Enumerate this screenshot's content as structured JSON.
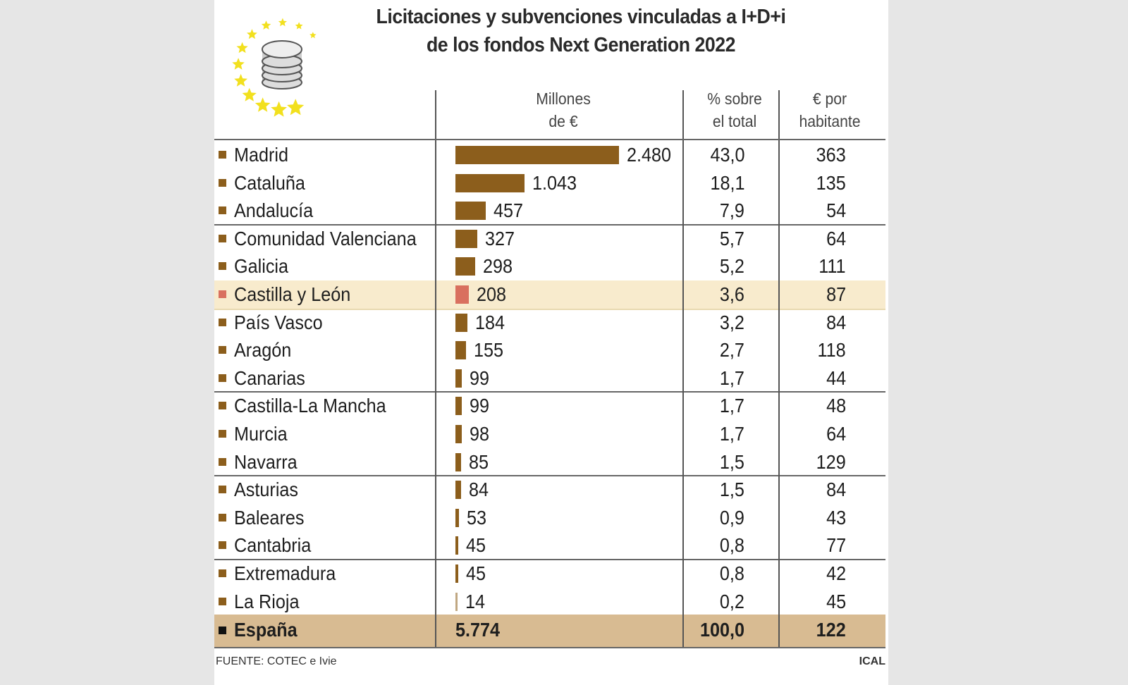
{
  "chart_data": {
    "type": "table",
    "title": "Licitaciones y subvenciones vinculadas a I+D+i de los fondos Next Generation 2022",
    "title_lines": [
      "Licitaciones y subvenciones vinculadas a I+D+i",
      "de los fondos Next Generation 2022"
    ],
    "columns": [
      "Millones de €",
      "% sobre el total",
      "€ por habitante"
    ],
    "column_lines": [
      [
        "Millones",
        "de €"
      ],
      [
        "% sobre",
        "el total"
      ],
      [
        "€ por",
        "habitante"
      ]
    ],
    "rows": [
      {
        "region": "Madrid",
        "millones": "2.480",
        "value": 2480,
        "pct": "43,0",
        "per_hab": "363"
      },
      {
        "region": "Cataluña",
        "millones": "1.043",
        "value": 1043,
        "pct": "18,1",
        "per_hab": "135"
      },
      {
        "region": "Andalucía",
        "millones": "457",
        "value": 457,
        "pct": "7,9",
        "per_hab": "54"
      },
      {
        "region": "Comunidad Valenciana",
        "millones": "327",
        "value": 327,
        "pct": "5,7",
        "per_hab": "64"
      },
      {
        "region": "Galicia",
        "millones": "298",
        "value": 298,
        "pct": "5,2",
        "per_hab": "111"
      },
      {
        "region": "Castilla y León",
        "millones": "208",
        "value": 208,
        "pct": "3,6",
        "per_hab": "87",
        "highlight": true
      },
      {
        "region": "País Vasco",
        "millones": "184",
        "value": 184,
        "pct": "3,2",
        "per_hab": "84"
      },
      {
        "region": "Aragón",
        "millones": "155",
        "value": 155,
        "pct": "2,7",
        "per_hab": "118"
      },
      {
        "region": "Canarias",
        "millones": "99",
        "value": 99,
        "pct": "1,7",
        "per_hab": "44"
      },
      {
        "region": "Castilla-La Mancha",
        "millones": "99",
        "value": 99,
        "pct": "1,7",
        "per_hab": "48"
      },
      {
        "region": "Murcia",
        "millones": "98",
        "value": 98,
        "pct": "1,7",
        "per_hab": "64"
      },
      {
        "region": "Navarra",
        "millones": "85",
        "value": 85,
        "pct": "1,5",
        "per_hab": "129"
      },
      {
        "region": "Asturias",
        "millones": "84",
        "value": 84,
        "pct": "1,5",
        "per_hab": "84"
      },
      {
        "region": "Baleares",
        "millones": "53",
        "value": 53,
        "pct": "0,9",
        "per_hab": "43"
      },
      {
        "region": "Cantabria",
        "millones": "45",
        "value": 45,
        "pct": "0,8",
        "per_hab": "77"
      },
      {
        "region": "Extremadura",
        "millones": "45",
        "value": 45,
        "pct": "0,8",
        "per_hab": "42"
      },
      {
        "region": "La Rioja",
        "millones": "14",
        "value": 14,
        "pct": "0,2",
        "per_hab": "45"
      }
    ],
    "total": {
      "region": "España",
      "millones": "5.774",
      "pct": "100,0",
      "per_hab": "122"
    },
    "colors": {
      "bar": "#8c5e1c",
      "highlight_bar": "#d9705f",
      "highlight_row": "#f8ebcd",
      "total_row": "#d8bb92",
      "stars": "#f2e01e"
    }
  },
  "footer": {
    "source": "FUENTE: COTEC e Ivie",
    "brand": "ICAL"
  },
  "logo": {
    "icon": "eu-stars-coins-icon"
  }
}
